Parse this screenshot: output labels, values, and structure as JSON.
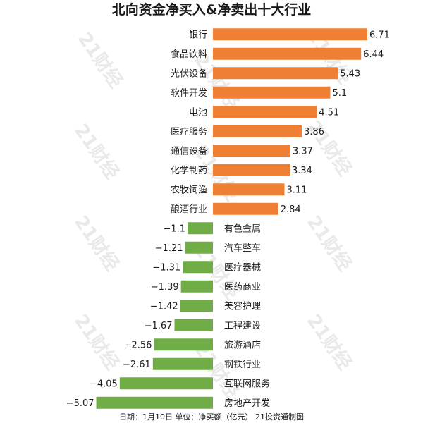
{
  "chart_data": {
    "type": "bar",
    "orientation": "horizontal",
    "title": "北向资金净买入&净卖出十大行业",
    "categories": [
      "银行",
      "食品饮料",
      "光伏设备",
      "软件开发",
      "电池",
      "医疗服务",
      "通信设备",
      "化学制药",
      "农牧饲渔",
      "酿酒行业",
      "有色金属",
      "汽车整车",
      "医疗器械",
      "医药商业",
      "美容护理",
      "工程建设",
      "旅游酒店",
      "钢铁行业",
      "互联网服务",
      "房地产开发"
    ],
    "values": [
      6.71,
      6.44,
      5.43,
      5.1,
      4.51,
      3.86,
      3.37,
      3.34,
      3.11,
      2.84,
      -1.1,
      -1.21,
      -1.31,
      -1.39,
      -1.42,
      -1.67,
      -2.56,
      -2.61,
      -4.05,
      -5.07
    ],
    "value_labels": [
      "6.71",
      "6.44",
      "5.43",
      "5.1",
      "4.51",
      "3.86",
      "3.37",
      "3.34",
      "3.11",
      "2.84",
      "−1.1",
      "−1.21",
      "−1.31",
      "−1.39",
      "−1.42",
      "−1.67",
      "−2.56",
      "−2.61",
      "−4.05",
      "−5.07"
    ],
    "xlim": [
      -5.07,
      6.71
    ],
    "colors": {
      "positive": "#ef8033",
      "negative": "#70ad47"
    },
    "grid": false,
    "legend": "none"
  },
  "footnote": "日期：1月10日 单位：净买额（亿元） 21投资通制图",
  "watermark": "21财经"
}
